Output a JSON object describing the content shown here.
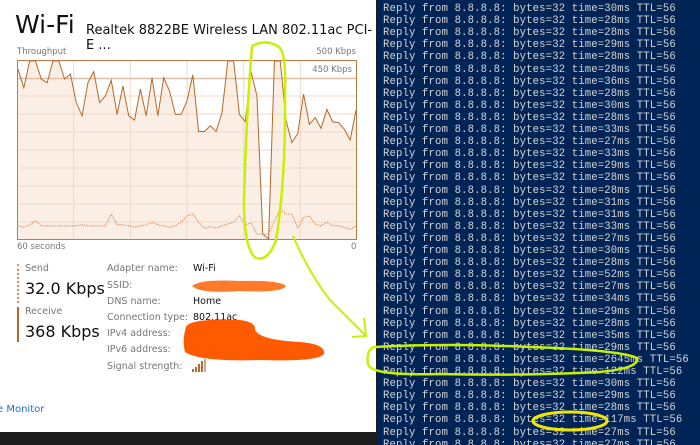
{
  "header": {
    "title": "Wi-Fi",
    "adapter": "Realtek 8822BE Wireless LAN 802.11ac PCI-E ..."
  },
  "graph": {
    "label": "Throughput",
    "max_label": "500 Kbps",
    "ref_label": "450 Kbps",
    "time_label": "60 seconds",
    "min_label": "0",
    "max_kbps": 500,
    "receive_color": "#b5692b",
    "send_color": "#e08a5a",
    "fill_color": "#fbeee4",
    "receive_kbps": [
      477,
      425,
      500,
      500,
      449,
      439,
      500,
      500,
      449,
      463,
      383,
      346,
      439,
      470,
      383,
      402,
      446,
      350,
      430,
      346,
      334,
      421,
      346,
      453,
      346,
      453,
      416,
      350,
      350,
      388,
      461,
      302,
      302,
      318,
      302,
      355,
      500,
      500,
      350,
      330,
      470,
      402,
      14,
      0,
      500,
      500,
      332,
      271,
      296,
      407,
      322,
      341,
      311,
      364,
      329,
      327,
      308,
      278,
      362
    ],
    "send_kbps": [
      37,
      33,
      40,
      51,
      37,
      37,
      37,
      37,
      37,
      37,
      37,
      40,
      37,
      37,
      37,
      37,
      70,
      40,
      40,
      37,
      33,
      37,
      40,
      47,
      40,
      37,
      33,
      37,
      47,
      65,
      70,
      47,
      30,
      35,
      30,
      37,
      42,
      47,
      65,
      40,
      45,
      14,
      14,
      14,
      50,
      85,
      70,
      70,
      30,
      60,
      65,
      42,
      37,
      47,
      37,
      37,
      33,
      27,
      37
    ]
  },
  "send": {
    "label": "Send",
    "value": "32.0 Kbps"
  },
  "receive": {
    "label": "Receive",
    "value": "368 Kbps"
  },
  "details": [
    {
      "label": "Adapter name:",
      "value": "Wi-Fi"
    },
    {
      "label": "SSID:",
      "value": ""
    },
    {
      "label": "DNS name:",
      "value": "Home"
    },
    {
      "label": "Connection type:",
      "value": "802.11ac"
    },
    {
      "label": "IPv4 address:",
      "value": ""
    },
    {
      "label": "IPv6 address:",
      "value": ""
    },
    {
      "label": "Signal strength:",
      "value": ""
    }
  ],
  "footer_link": "e Monitor",
  "annotation_colors": {
    "green": "#c8f000",
    "yellow": "#f2e600",
    "redaction": "#ff6a10"
  },
  "terminal": {
    "prefix": "Reply from 8.8.8.8: bytes=32 ",
    "times": [
      "30",
      "28",
      "28",
      "29",
      "28",
      "28",
      "36",
      "28",
      "30",
      "28",
      "33",
      "27",
      "33",
      "29",
      "28",
      "28",
      "31",
      "31",
      "33",
      "27",
      "30",
      "28",
      "52",
      "27",
      "34",
      "29",
      "28",
      "35",
      "29",
      "2645",
      "122",
      "30",
      "29",
      "28",
      "117",
      "27",
      "27"
    ],
    "lines": []
  }
}
